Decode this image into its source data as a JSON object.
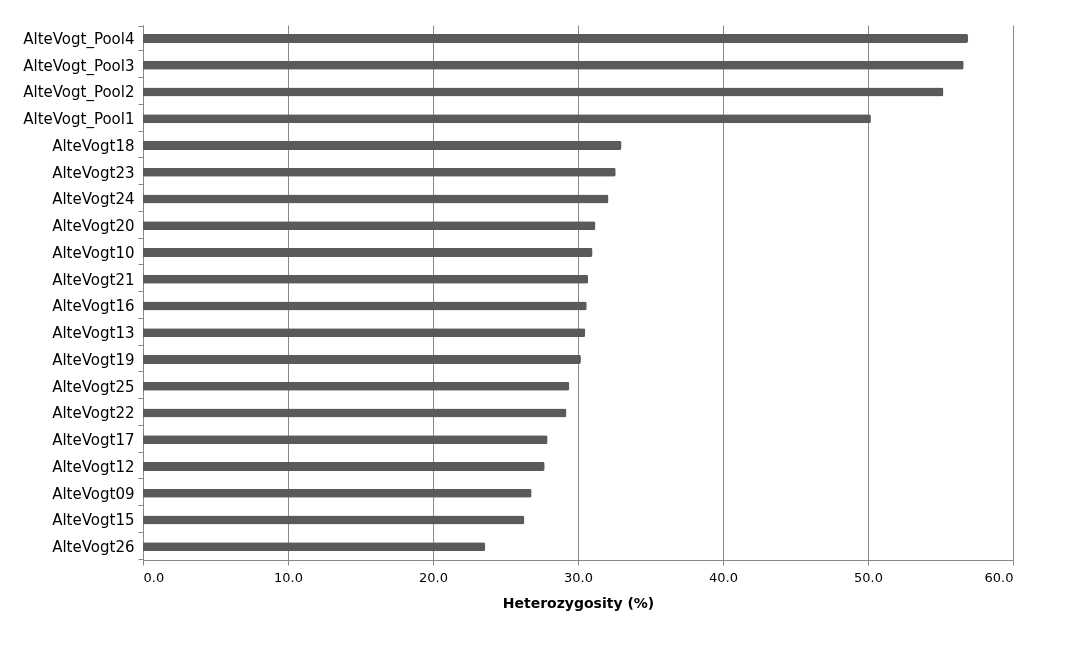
{
  "chart_data": {
    "type": "bar",
    "orientation": "horizontal",
    "xlabel": "Heterozygosity (%)",
    "categories": [
      "AlteVogt_Pool4",
      "AlteVogt_Pool3",
      "AlteVogt_Pool2",
      "AlteVogt_Pool1",
      "AlteVogt18",
      "AlteVogt23",
      "AlteVogt24",
      "AlteVogt20",
      "AlteVogt10",
      "AlteVogt21",
      "AlteVogt16",
      "AlteVogt13",
      "AlteVogt19",
      "AlteVogt25",
      "AlteVogt22",
      "AlteVogt17",
      "AlteVogt12",
      "AlteVogt09",
      "AlteVogt15",
      "AlteVogt26"
    ],
    "values": [
      56.9,
      56.6,
      55.2,
      50.2,
      33.0,
      32.6,
      32.1,
      31.2,
      31.0,
      30.7,
      30.6,
      30.5,
      30.2,
      29.4,
      29.2,
      27.9,
      27.7,
      26.8,
      26.3,
      23.6
    ],
    "color": "#5a5a5a",
    "xlim": [
      0,
      60
    ],
    "xticks": [
      {
        "value": 0,
        "label": "0.0"
      },
      {
        "value": 10,
        "label": "10.0"
      },
      {
        "value": 20,
        "label": "20.0"
      },
      {
        "value": 30,
        "label": "30.0"
      },
      {
        "value": 40,
        "label": "40.0"
      },
      {
        "value": 50,
        "label": "50.0"
      },
      {
        "value": 60,
        "label": "60.0"
      }
    ],
    "grid": "x"
  }
}
